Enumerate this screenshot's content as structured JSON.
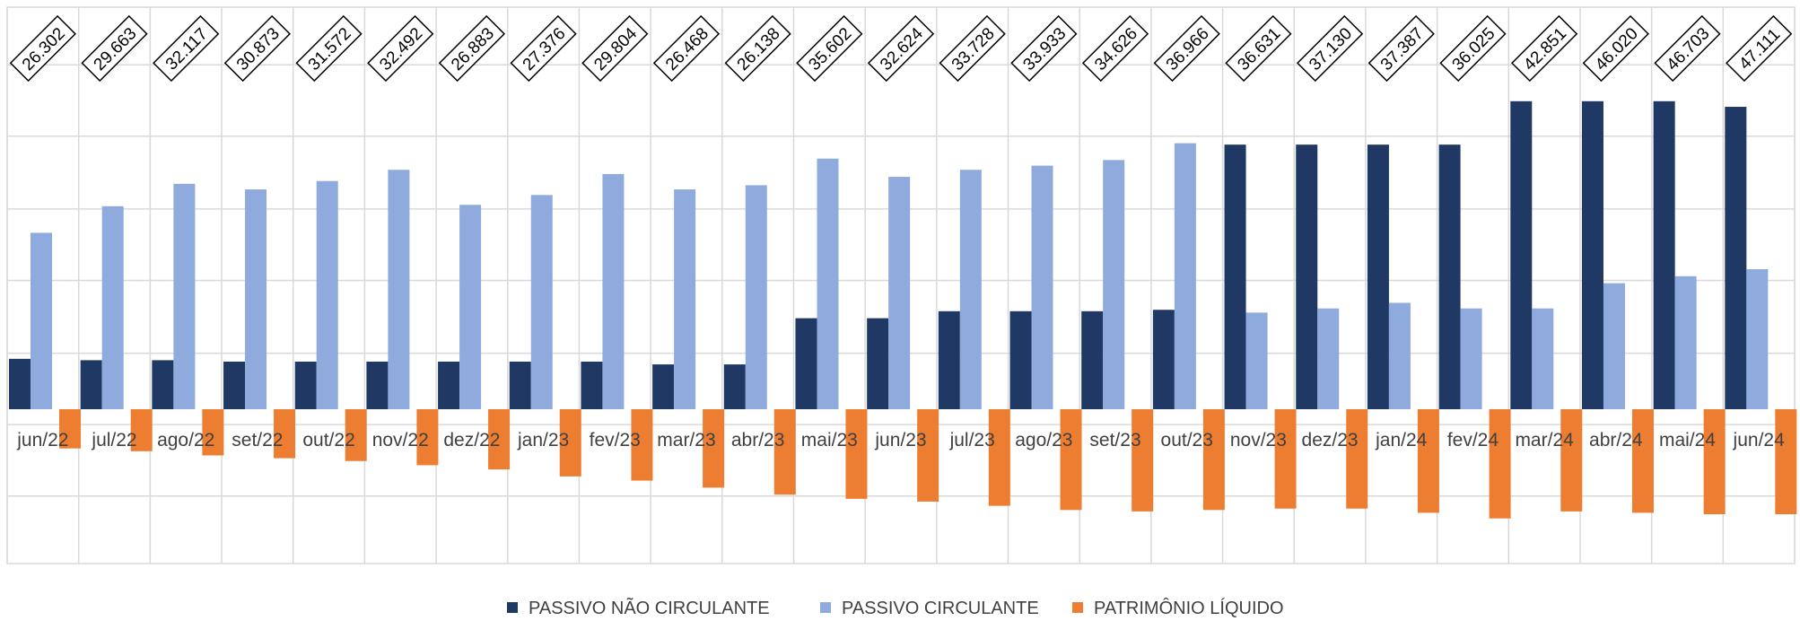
{
  "chart_data": {
    "type": "bar",
    "categories": [
      "jun/22",
      "jul/22",
      "ago/22",
      "set/22",
      "out/22",
      "nov/22",
      "dez/22",
      "jan/23",
      "fev/23",
      "mar/23",
      "abr/23",
      "mai/23",
      "jun/23",
      "jul/23",
      "ago/23",
      "set/23",
      "out/23",
      "nov/23",
      "dez/23",
      "jan/24",
      "fev/24",
      "mar/24",
      "abr/24",
      "mai/24",
      "jun/24"
    ],
    "totals": [
      "26.302",
      "29.663",
      "32.117",
      "30.873",
      "31.572",
      "32.492",
      "26.883",
      "27.376",
      "29.804",
      "26.468",
      "26.138",
      "35.602",
      "32.624",
      "33.728",
      "33.933",
      "34.626",
      "36.966",
      "36.631",
      "37.130",
      "37.387",
      "36.025",
      "42.851",
      "46.020",
      "46.703",
      "47.111"
    ],
    "series": [
      {
        "name": "PASSIVO NÃO CIRCULANTE",
        "color": "#1f3864",
        "values": [
          3.6,
          3.5,
          3.5,
          3.4,
          3.4,
          3.4,
          3.4,
          3.4,
          3.4,
          3.2,
          3.2,
          6.5,
          6.5,
          7.0,
          7.0,
          7.0,
          7.1,
          18.9,
          18.9,
          18.9,
          18.9,
          22.0,
          22.0,
          22.0,
          21.6
        ]
      },
      {
        "name": "PASSIVO CIRCULANTE",
        "color": "#8faadc",
        "values": [
          12.6,
          14.5,
          16.1,
          15.7,
          16.3,
          17.1,
          14.6,
          15.3,
          16.8,
          15.7,
          16.0,
          17.9,
          16.6,
          17.1,
          17.4,
          17.8,
          19.0,
          6.9,
          7.2,
          7.6,
          7.2,
          7.2,
          9.0,
          9.5,
          10.0
        ]
      },
      {
        "name": "PATRIMÔNIO LÍQUIDO",
        "color": "#ed7d31",
        "values": [
          -2.8,
          -3.0,
          -3.3,
          -3.5,
          -3.7,
          -4.0,
          -4.3,
          -4.8,
          -5.1,
          -5.6,
          -6.1,
          -6.4,
          -6.6,
          -6.9,
          -7.2,
          -7.3,
          -7.2,
          -7.1,
          -7.1,
          -7.4,
          -7.8,
          -7.3,
          -7.4,
          -7.5,
          -7.5
        ]
      }
    ],
    "ylim": [
      -11.5,
      29.0
    ],
    "y_gridlines": [
      -6.2,
      -1.1,
      4.0,
      9.2,
      14.3,
      19.5,
      24.6
    ],
    "grid": true,
    "legend_position": "bottom"
  }
}
